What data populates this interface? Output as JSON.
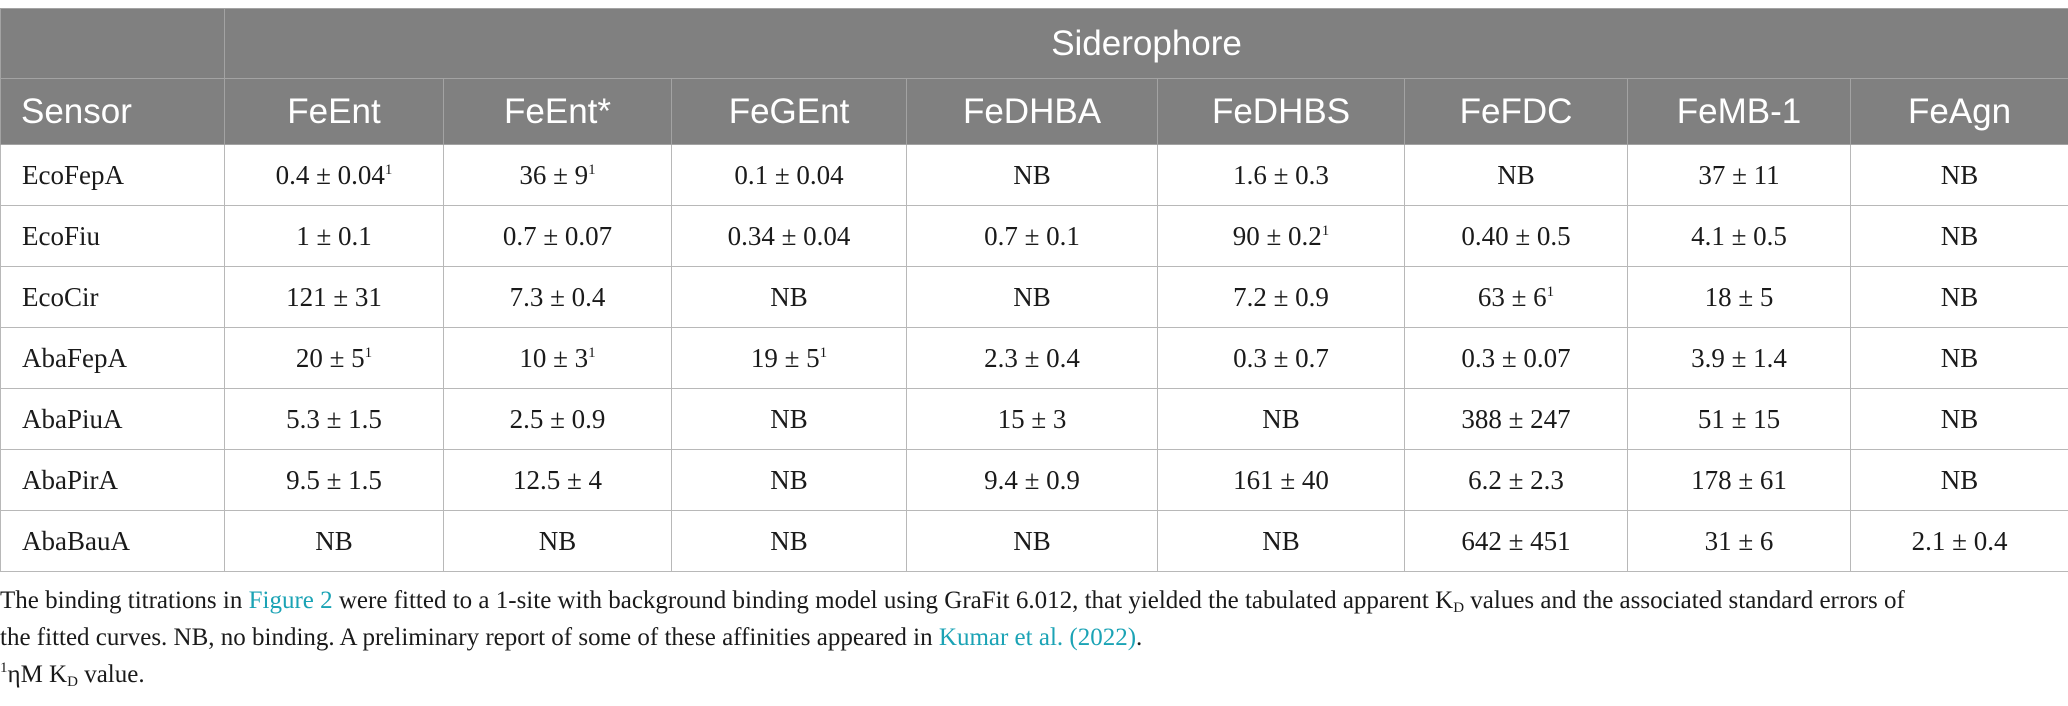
{
  "table": {
    "group_header": "Siderophore",
    "columns": [
      "Sensor",
      "FeEnt",
      "FeEnt*",
      "FeGEnt",
      "FeDHBA",
      "FeDHBS",
      "FeFDC",
      "FeMB-1",
      "FeAgn"
    ],
    "rows": [
      {
        "sensor": "EcoFepA",
        "cells": [
          {
            "v": "0.4 ± 0.04",
            "sup": "1"
          },
          {
            "v": "36 ± 9",
            "sup": "1"
          },
          {
            "v": "0.1 ± 0.04"
          },
          {
            "v": "NB"
          },
          {
            "v": "1.6 ± 0.3"
          },
          {
            "v": "NB"
          },
          {
            "v": "37 ± 11"
          },
          {
            "v": "NB"
          }
        ]
      },
      {
        "sensor": "EcoFiu",
        "cells": [
          {
            "v": "1 ± 0.1"
          },
          {
            "v": "0.7 ± 0.07"
          },
          {
            "v": "0.34 ± 0.04"
          },
          {
            "v": "0.7 ± 0.1"
          },
          {
            "v": "90 ± 0.2",
            "sup": "1"
          },
          {
            "v": "0.40 ± 0.5"
          },
          {
            "v": "4.1 ± 0.5"
          },
          {
            "v": "NB"
          }
        ]
      },
      {
        "sensor": "EcoCir",
        "cells": [
          {
            "v": "121 ± 31"
          },
          {
            "v": "7.3 ± 0.4"
          },
          {
            "v": "NB"
          },
          {
            "v": "NB"
          },
          {
            "v": "7.2 ± 0.9"
          },
          {
            "v": "63 ± 6",
            "sup": "1"
          },
          {
            "v": "18 ± 5"
          },
          {
            "v": "NB"
          }
        ]
      },
      {
        "sensor": "AbaFepA",
        "cells": [
          {
            "v": "20 ± 5",
            "sup": "1"
          },
          {
            "v": "10 ± 3",
            "sup": "1"
          },
          {
            "v": "19 ± 5",
            "sup": "1"
          },
          {
            "v": "2.3 ± 0.4"
          },
          {
            "v": "0.3 ± 0.7"
          },
          {
            "v": "0.3 ± 0.07"
          },
          {
            "v": "3.9 ± 1.4"
          },
          {
            "v": "NB"
          }
        ]
      },
      {
        "sensor": "AbaPiuA",
        "cells": [
          {
            "v": "5.3 ± 1.5"
          },
          {
            "v": "2.5 ± 0.9"
          },
          {
            "v": "NB"
          },
          {
            "v": "15 ± 3"
          },
          {
            "v": "NB"
          },
          {
            "v": "388 ± 247"
          },
          {
            "v": "51 ± 15"
          },
          {
            "v": "NB"
          }
        ]
      },
      {
        "sensor": "AbaPirA",
        "cells": [
          {
            "v": "9.5 ± 1.5"
          },
          {
            "v": "12.5 ± 4"
          },
          {
            "v": "NB"
          },
          {
            "v": "9.4 ± 0.9"
          },
          {
            "v": "161 ± 40"
          },
          {
            "v": "6.2 ± 2.3"
          },
          {
            "v": "178 ± 61"
          },
          {
            "v": "NB"
          }
        ]
      },
      {
        "sensor": "AbaBauA",
        "cells": [
          {
            "v": "NB"
          },
          {
            "v": "NB"
          },
          {
            "v": "NB"
          },
          {
            "v": "NB"
          },
          {
            "v": "NB"
          },
          {
            "v": "642 ± 451"
          },
          {
            "v": "31 ± 6"
          },
          {
            "v": "2.1 ± 0.4"
          }
        ]
      }
    ]
  },
  "footnote": {
    "p1_a": "The binding titrations in ",
    "p1_link1": "Figure 2",
    "p1_b": " were fitted to a 1-site with background binding model using GraFit 6.012, that yielded the tabulated apparent K",
    "p1_sub": "D",
    "p1_c": " values and the associated standard errors of",
    "p2_a": "the fitted curves. NB, no binding. A preliminary report of some of these affinities appeared in ",
    "p2_link2": "Kumar et al. (2022)",
    "p2_b": ".",
    "p3_sup": "1",
    "p3_a": "ηM K",
    "p3_sub": "D",
    "p3_b": " value."
  }
}
